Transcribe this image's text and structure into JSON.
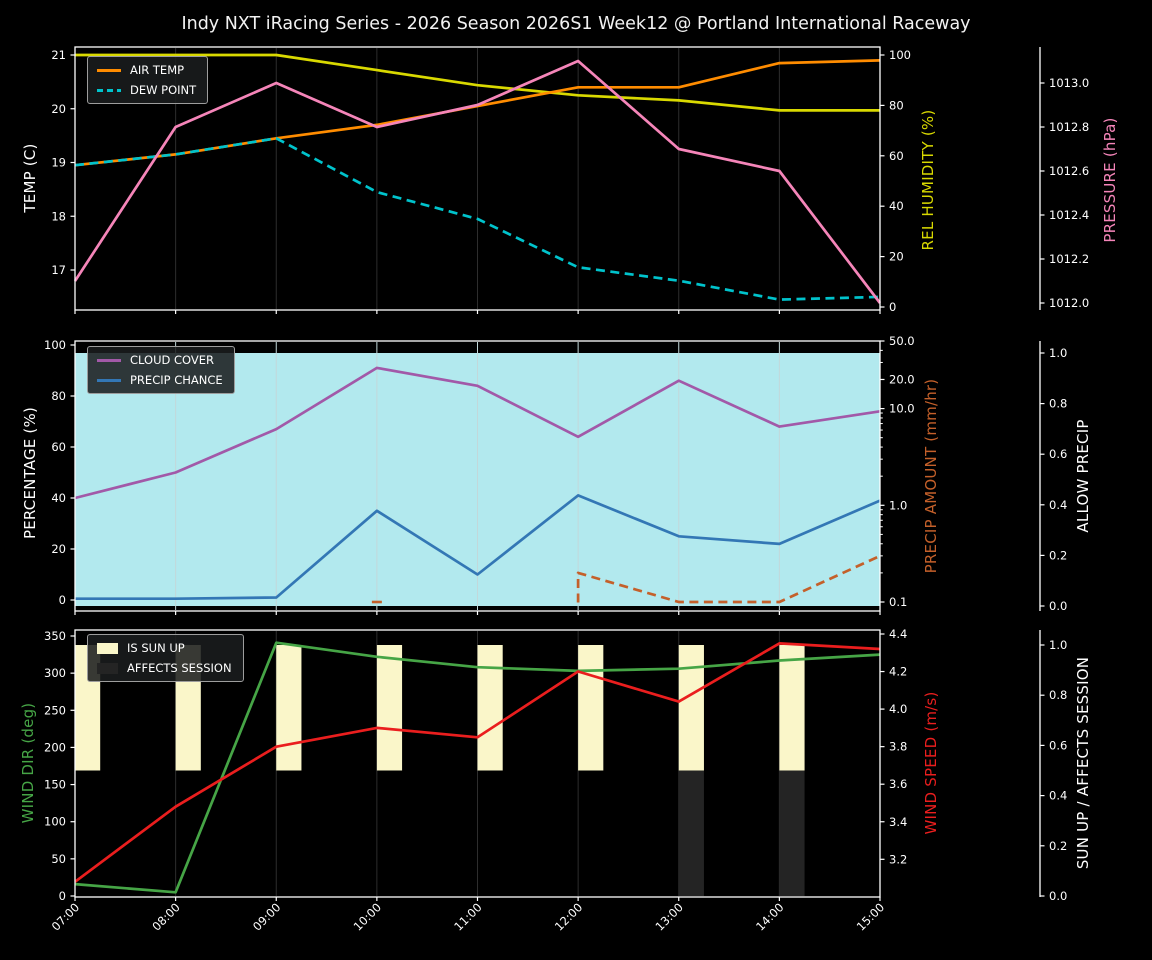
{
  "title": "Indy NXT iRacing Series - 2026 Season 2026S1 Week12 @ Portland International Raceway",
  "chart_data": {
    "type": "line",
    "x_tick_labels": [
      "07:00",
      "08:00",
      "09:00",
      "10:00",
      "11:00",
      "12:00",
      "13:00",
      "14:00",
      "15:00"
    ],
    "x_hours": [
      7,
      8,
      9,
      10,
      11,
      12,
      13,
      14,
      15
    ],
    "grid": "vertical-only",
    "background": "#000000",
    "panels": [
      {
        "name": "temperature-humidity-pressure",
        "axes": {
          "left": {
            "id": "temp",
            "label": "TEMP (C)",
            "color": "#ffffff",
            "tick_labels": [
              "17",
              "18",
              "19",
              "20",
              "21"
            ],
            "tick_values": [
              17,
              18,
              19,
              20,
              21
            ],
            "range": [
              16.25,
              21.15
            ]
          },
          "right1": {
            "id": "humidity",
            "label": "REL HUMIDITY (%)",
            "color": "#d9d900",
            "tick_labels": [
              "0",
              "20",
              "40",
              "60",
              "80",
              "100"
            ],
            "tick_values": [
              0,
              20,
              40,
              60,
              80,
              100
            ],
            "range": [
              -1,
              101
            ]
          },
          "right2": {
            "id": "pressure",
            "label": "PRESSURE (hPa)",
            "color": "#f585b9",
            "tick_labels": [
              "1012.0",
              "1012.2",
              "1012.4",
              "1012.6",
              "1012.8",
              "1013.0"
            ],
            "tick_values": [
              1012.0,
              1012.2,
              1012.4,
              1012.6,
              1012.8,
              1013.0
            ],
            "range": [
              1012.0,
              1013.12
            ]
          }
        },
        "series": [
          {
            "name": "REL HUMIDITY",
            "axis": "humidity",
            "color": "#d9d900",
            "style": "solid",
            "values": [
              100,
              100,
              100,
              94,
              88,
              84,
              82,
              78,
              78
            ]
          },
          {
            "name": "AIR TEMP",
            "axis": "temp",
            "color": "#ff8c00",
            "style": "solid",
            "values": [
              18.95,
              19.15,
              19.45,
              19.7,
              20.05,
              20.4,
              20.4,
              20.85,
              20.9
            ]
          },
          {
            "name": "DEW POINT",
            "axis": "temp",
            "color": "#00c3cc",
            "style": "dashed",
            "values": [
              18.95,
              19.15,
              19.45,
              18.45,
              17.95,
              17.05,
              16.8,
              16.45,
              16.5
            ]
          },
          {
            "name": "PRESSURE",
            "axis": "pressure",
            "color": "#f585b9",
            "style": "solid",
            "values": [
              1012.1,
              1012.8,
              1013.0,
              1012.8,
              1012.9,
              1013.1,
              1012.7,
              1012.6,
              1012.0
            ]
          }
        ],
        "legend": [
          {
            "label": "AIR TEMP",
            "swatch": "line",
            "color": "#ff8c00",
            "dashed": false
          },
          {
            "label": "DEW POINT",
            "swatch": "line",
            "color": "#00c3cc",
            "dashed": true
          }
        ]
      },
      {
        "name": "precipitation",
        "background_fill": {
          "label": "ALLOW PRECIP",
          "color": "#b2e9ee",
          "axis": "allow",
          "from": 0,
          "to": 1
        },
        "allow_precip_values": [
          1,
          1,
          1,
          1,
          1,
          1,
          1,
          1,
          1
        ],
        "axes": {
          "left": {
            "id": "pct",
            "label": "PERCENTAGE (%)",
            "color": "#ffffff",
            "tick_labels": [
              "0",
              "20",
              "40",
              "60",
              "80",
              "100"
            ],
            "tick_values": [
              0,
              20,
              40,
              60,
              80,
              100
            ]
          },
          "right1": {
            "id": "amount",
            "label": "PRECIP AMOUNT (mm/hr)",
            "color": "#c4602a",
            "scale": "log",
            "tick_labels": [
              "50.0",
              "20.0",
              "10.0",
              "1.0",
              "0.1"
            ],
            "tick_values": [
              50,
              20,
              10,
              1,
              0.1
            ],
            "range": [
              0.09,
              50
            ]
          },
          "right2": {
            "id": "allow",
            "label": "ALLOW PRECIP",
            "color": "#ffffff",
            "tick_labels": [
              "0.0",
              "0.2",
              "0.4",
              "0.6",
              "0.8",
              "1.0"
            ],
            "tick_values": [
              0,
              0.2,
              0.4,
              0.6,
              0.8,
              1
            ]
          }
        },
        "series": [
          {
            "name": "CLOUD COVER",
            "axis": "pct",
            "color": "#a259a8",
            "style": "solid",
            "values": [
              40,
              50,
              67,
              91,
              84,
              64,
              86,
              68,
              74
            ]
          },
          {
            "name": "PRECIP CHANCE",
            "axis": "pct",
            "color": "#3377b5",
            "style": "solid",
            "values": [
              0.5,
              0.5,
              1,
              35,
              10,
              41,
              25,
              22,
              39
            ]
          },
          {
            "name": "PRECIP AMOUNT",
            "axis": "amount",
            "color": "#c4602a",
            "style": "dashed",
            "values": [
              null,
              null,
              null,
              0.1,
              null,
              0.2,
              0.1,
              0.1,
              0.3
            ],
            "riser_at_segment_start": true
          }
        ],
        "legend": [
          {
            "label": "CLOUD COVER",
            "swatch": "line",
            "color": "#a259a8",
            "dashed": false
          },
          {
            "label": "PRECIP CHANCE",
            "swatch": "line",
            "color": "#3377b5",
            "dashed": false
          }
        ]
      },
      {
        "name": "wind-sun",
        "axes": {
          "left": {
            "id": "dir",
            "label": "WIND DIR (deg)",
            "color": "#46a546",
            "tick_labels": [
              "0",
              "50",
              "100",
              "150",
              "200",
              "250",
              "300",
              "350"
            ],
            "tick_values": [
              0,
              50,
              100,
              150,
              200,
              250,
              300,
              350
            ]
          },
          "right1": {
            "id": "speed",
            "label": "WIND SPEED (m/s)",
            "color": "#ea1e1e",
            "tick_labels": [
              "3.2",
              "3.4",
              "3.6",
              "3.8",
              "4.0",
              "4.2",
              "4.4"
            ],
            "tick_values": [
              3.2,
              3.4,
              3.6,
              3.8,
              4.0,
              4.2,
              4.4
            ]
          },
          "right2": {
            "id": "sun",
            "label": "SUN UP / AFFECTS SESSION",
            "color": "#ffffff",
            "tick_labels": [
              "0.0",
              "0.2",
              "0.4",
              "0.6",
              "0.8",
              "1.0"
            ],
            "tick_values": [
              0,
              0.2,
              0.4,
              0.6,
              0.8,
              1
            ]
          }
        },
        "bars": [
          {
            "name": "IS SUN UP",
            "color": "#faf6c9",
            "axis": "sun",
            "span": [
              0.5,
              1.0
            ],
            "hours": [
              7,
              8,
              9,
              10,
              11,
              12,
              13,
              14
            ],
            "values_by_hour": [
              1,
              1,
              1,
              1,
              1,
              1,
              1,
              1,
              0
            ]
          },
          {
            "name": "AFFECTS SESSION",
            "color": "#242424",
            "axis": "sun",
            "span": [
              0.0,
              0.5
            ],
            "hours": [
              13,
              14
            ],
            "values_by_hour": [
              0,
              0,
              0,
              0,
              0,
              0,
              1,
              1,
              0
            ]
          }
        ],
        "series": [
          {
            "name": "WIND DIR",
            "axis": "dir",
            "color": "#46a546",
            "style": "solid",
            "values": [
              16,
              5,
              341,
              322,
              308,
              303,
              306,
              317,
              325
            ]
          },
          {
            "name": "WIND SPEED",
            "axis": "speed",
            "color": "#ea1e1e",
            "style": "solid",
            "values": [
              3.08,
              3.48,
              3.8,
              3.9,
              3.85,
              4.2,
              4.04,
              4.35,
              4.32
            ]
          }
        ],
        "legend": [
          {
            "label": "IS SUN UP",
            "swatch": "patch",
            "color": "#faf6c9"
          },
          {
            "label": "AFFECTS SESSION",
            "swatch": "patch",
            "color": "#242424"
          }
        ]
      }
    ]
  }
}
